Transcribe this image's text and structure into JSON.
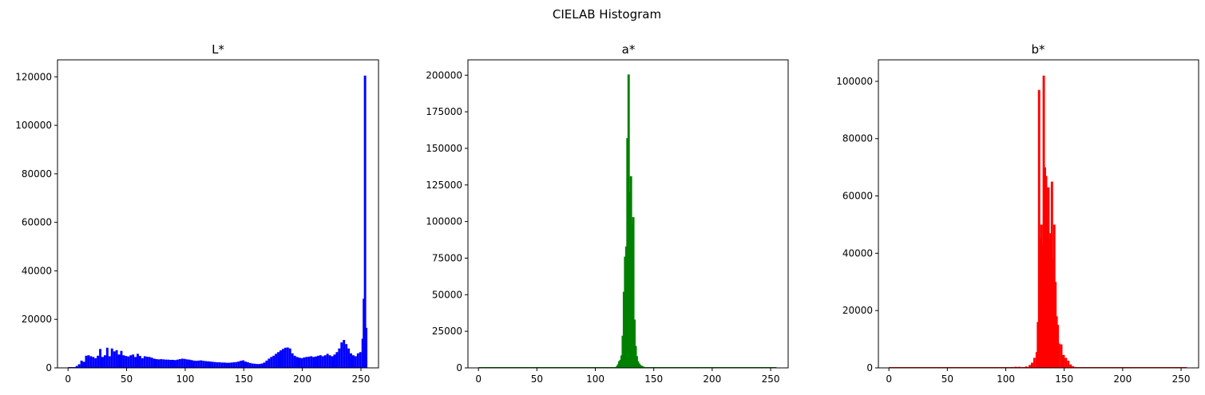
{
  "figure": {
    "title": "CIELAB Histogram"
  },
  "chart_data": [
    {
      "type": "bar",
      "title": "L*",
      "color": "#0000ff",
      "xlim": [
        -9,
        265
      ],
      "ylim": [
        0,
        127000
      ],
      "xticks": [
        0,
        50,
        100,
        150,
        200,
        250
      ],
      "yticks": [
        0,
        20000,
        40000,
        60000,
        80000,
        100000,
        120000
      ],
      "bins": [
        [
          5,
          300
        ],
        [
          7,
          800
        ],
        [
          9,
          1500
        ],
        [
          11,
          3000
        ],
        [
          13,
          2500
        ],
        [
          15,
          5000
        ],
        [
          17,
          5200
        ],
        [
          19,
          4800
        ],
        [
          21,
          4500
        ],
        [
          23,
          4000
        ],
        [
          25,
          5000
        ],
        [
          27,
          7800
        ],
        [
          29,
          4500
        ],
        [
          31,
          5200
        ],
        [
          33,
          8300
        ],
        [
          35,
          4800
        ],
        [
          37,
          8000
        ],
        [
          39,
          6800
        ],
        [
          41,
          7300
        ],
        [
          43,
          5500
        ],
        [
          45,
          7000
        ],
        [
          47,
          5200
        ],
        [
          49,
          4900
        ],
        [
          51,
          4700
        ],
        [
          53,
          5200
        ],
        [
          55,
          5500
        ],
        [
          57,
          4500
        ],
        [
          59,
          5800
        ],
        [
          61,
          4900
        ],
        [
          63,
          4000
        ],
        [
          65,
          4800
        ],
        [
          67,
          4600
        ],
        [
          69,
          4500
        ],
        [
          71,
          4200
        ],
        [
          73,
          3800
        ],
        [
          75,
          3600
        ],
        [
          77,
          3500
        ],
        [
          79,
          3600
        ],
        [
          81,
          3500
        ],
        [
          83,
          3400
        ],
        [
          85,
          3400
        ],
        [
          87,
          3300
        ],
        [
          89,
          3300
        ],
        [
          91,
          3200
        ],
        [
          93,
          3400
        ],
        [
          95,
          3600
        ],
        [
          97,
          3800
        ],
        [
          99,
          3700
        ],
        [
          101,
          3500
        ],
        [
          103,
          3400
        ],
        [
          105,
          3200
        ],
        [
          107,
          3000
        ],
        [
          109,
          2900
        ],
        [
          111,
          3000
        ],
        [
          113,
          3100
        ],
        [
          115,
          2900
        ],
        [
          117,
          2800
        ],
        [
          119,
          2700
        ],
        [
          121,
          2600
        ],
        [
          123,
          2500
        ],
        [
          125,
          2400
        ],
        [
          127,
          2300
        ],
        [
          129,
          2300
        ],
        [
          131,
          2200
        ],
        [
          133,
          2200
        ],
        [
          135,
          2100
        ],
        [
          137,
          2100
        ],
        [
          139,
          2200
        ],
        [
          141,
          2300
        ],
        [
          143,
          2400
        ],
        [
          145,
          2600
        ],
        [
          147,
          2900
        ],
        [
          149,
          3100
        ],
        [
          151,
          2600
        ],
        [
          153,
          2300
        ],
        [
          155,
          2000
        ],
        [
          157,
          1800
        ],
        [
          159,
          1700
        ],
        [
          161,
          1600
        ],
        [
          163,
          1600
        ],
        [
          165,
          1800
        ],
        [
          167,
          2200
        ],
        [
          169,
          3000
        ],
        [
          171,
          3800
        ],
        [
          173,
          4500
        ],
        [
          175,
          5000
        ],
        [
          177,
          5800
        ],
        [
          179,
          6500
        ],
        [
          181,
          7200
        ],
        [
          183,
          7800
        ],
        [
          185,
          8300
        ],
        [
          187,
          8400
        ],
        [
          189,
          8000
        ],
        [
          191,
          6000
        ],
        [
          193,
          5000
        ],
        [
          195,
          4500
        ],
        [
          197,
          4200
        ],
        [
          199,
          4000
        ],
        [
          201,
          4300
        ],
        [
          203,
          4500
        ],
        [
          205,
          4600
        ],
        [
          207,
          4800
        ],
        [
          209,
          4500
        ],
        [
          211,
          4700
        ],
        [
          213,
          5000
        ],
        [
          215,
          5200
        ],
        [
          217,
          4800
        ],
        [
          219,
          5200
        ],
        [
          221,
          5800
        ],
        [
          223,
          5200
        ],
        [
          225,
          4800
        ],
        [
          227,
          5500
        ],
        [
          229,
          6500
        ],
        [
          231,
          8000
        ],
        [
          233,
          10500
        ],
        [
          235,
          11500
        ],
        [
          237,
          9800
        ],
        [
          239,
          8000
        ],
        [
          241,
          6000
        ],
        [
          243,
          5200
        ],
        [
          245,
          4800
        ],
        [
          247,
          6000
        ],
        [
          249,
          6500
        ],
        [
          251,
          12000
        ],
        [
          252,
          28500
        ],
        [
          253,
          120500
        ],
        [
          254,
          16500
        ]
      ]
    },
    {
      "type": "bar",
      "title": "a*",
      "color": "#008000",
      "xlim": [
        -9,
        265
      ],
      "ylim": [
        0,
        210500
      ],
      "xticks": [
        0,
        50,
        100,
        150,
        200,
        250
      ],
      "yticks": [
        0,
        25000,
        50000,
        75000,
        100000,
        125000,
        150000,
        175000,
        200000
      ],
      "bins": [
        [
          116,
          200
        ],
        [
          117,
          500
        ],
        [
          118,
          1200
        ],
        [
          119,
          2500
        ],
        [
          120,
          4500
        ],
        [
          121,
          5500
        ],
        [
          122,
          8500
        ],
        [
          123,
          22000
        ],
        [
          124,
          52000
        ],
        [
          125,
          76000
        ],
        [
          126,
          83000
        ],
        [
          127,
          157000
        ],
        [
          128,
          200500
        ],
        [
          129,
          120000
        ],
        [
          130,
          131000
        ],
        [
          131,
          98000
        ],
        [
          132,
          103000
        ],
        [
          133,
          33000
        ],
        [
          134,
          15000
        ],
        [
          135,
          8000
        ],
        [
          136,
          4500
        ],
        [
          137,
          3000
        ],
        [
          138,
          2000
        ],
        [
          139,
          1500
        ],
        [
          140,
          1000
        ],
        [
          141,
          700
        ],
        [
          142,
          500
        ],
        [
          143,
          300
        ],
        [
          144,
          200
        ],
        [
          145,
          100
        ]
      ]
    },
    {
      "type": "bar",
      "title": "b*",
      "color": "#ff0000",
      "xlim": [
        -9,
        265
      ],
      "ylim": [
        0,
        107500
      ],
      "xticks": [
        0,
        50,
        100,
        150,
        200,
        250
      ],
      "yticks": [
        0,
        20000,
        40000,
        60000,
        80000,
        100000
      ],
      "bins": [
        [
          105,
          300
        ],
        [
          108,
          400
        ],
        [
          111,
          400
        ],
        [
          114,
          300
        ],
        [
          117,
          500
        ],
        [
          120,
          1000
        ],
        [
          122,
          1800
        ],
        [
          124,
          3500
        ],
        [
          126,
          5500
        ],
        [
          127,
          16000
        ],
        [
          128,
          97000
        ],
        [
          129,
          45000
        ],
        [
          130,
          50000
        ],
        [
          131,
          43000
        ],
        [
          132,
          102000
        ],
        [
          133,
          70000
        ],
        [
          134,
          67000
        ],
        [
          135,
          52000
        ],
        [
          136,
          63000
        ],
        [
          137,
          45000
        ],
        [
          138,
          47000
        ],
        [
          139,
          65000
        ],
        [
          140,
          38000
        ],
        [
          141,
          50000
        ],
        [
          142,
          30000
        ],
        [
          143,
          18000
        ],
        [
          144,
          15000
        ],
        [
          145,
          8500
        ],
        [
          147,
          8200
        ],
        [
          149,
          4500
        ],
        [
          151,
          3500
        ],
        [
          153,
          2500
        ],
        [
          155,
          1200
        ],
        [
          157,
          600
        ],
        [
          159,
          300
        ],
        [
          162,
          100
        ]
      ]
    }
  ]
}
